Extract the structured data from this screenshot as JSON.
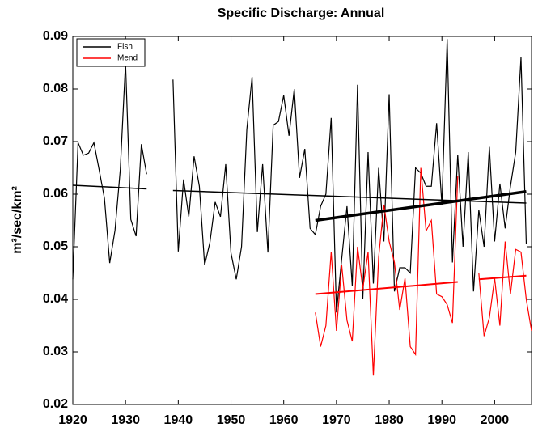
{
  "chart_data": {
    "type": "line",
    "title": "Specific Discharge: Annual",
    "y_label": "m³/sec/km²",
    "x": [
      1920,
      1921,
      1922,
      1923,
      1924,
      1925,
      1926,
      1927,
      1928,
      1929,
      1930,
      1931,
      1932,
      1933,
      1934,
      1935,
      1936,
      1937,
      1938,
      1939,
      1940,
      1941,
      1942,
      1943,
      1944,
      1945,
      1946,
      1947,
      1948,
      1949,
      1950,
      1951,
      1952,
      1953,
      1954,
      1955,
      1956,
      1957,
      1958,
      1959,
      1960,
      1961,
      1962,
      1963,
      1964,
      1965,
      1966,
      1967,
      1968,
      1969,
      1970,
      1971,
      1972,
      1973,
      1974,
      1975,
      1976,
      1977,
      1978,
      1979,
      1980,
      1981,
      1982,
      1983,
      1984,
      1985,
      1986,
      1987,
      1988,
      1989,
      1990,
      1991,
      1992,
      1993,
      1994,
      1995,
      1996,
      1997,
      1998,
      1999,
      2000,
      2001,
      2002,
      2003,
      2004,
      2005,
      2006,
      2007
    ],
    "series": [
      {
        "name": "Fish",
        "color": "#000000",
        "values": [
          0.0438,
          0.0698,
          0.0674,
          0.0678,
          0.0698,
          0.0646,
          0.0592,
          0.0469,
          0.0531,
          0.0646,
          0.085,
          0.0552,
          0.052,
          0.0695,
          0.0638,
          null,
          null,
          null,
          null,
          0.0818,
          0.0491,
          0.0628,
          0.0557,
          0.0672,
          0.0615,
          0.0465,
          0.0508,
          0.0585,
          0.0557,
          0.0657,
          0.0488,
          0.0438,
          0.05,
          0.0723,
          0.0823,
          0.0528,
          0.0657,
          0.0489,
          0.0731,
          0.0738,
          0.0788,
          0.0711,
          0.08,
          0.0631,
          0.0686,
          0.0535,
          0.0523,
          0.0577,
          0.06,
          0.0745,
          0.0375,
          0.0477,
          0.0577,
          0.0425,
          0.0808,
          0.04,
          0.068,
          0.043,
          0.065,
          0.051,
          0.079,
          0.0415,
          0.046,
          0.046,
          0.045,
          0.065,
          0.064,
          0.0615,
          0.0615,
          0.0735,
          0.058,
          0.0895,
          0.047,
          0.0675,
          0.05,
          0.068,
          0.0415,
          0.057,
          0.05,
          0.069,
          0.051,
          0.062,
          0.0535,
          0.0615,
          0.068,
          0.086,
          0.0505,
          null
        ]
      },
      {
        "name": "Mend",
        "color": "#ff0000",
        "values": [
          null,
          null,
          null,
          null,
          null,
          null,
          null,
          null,
          null,
          null,
          null,
          null,
          null,
          null,
          null,
          null,
          null,
          null,
          null,
          null,
          null,
          null,
          null,
          null,
          null,
          null,
          null,
          null,
          null,
          null,
          null,
          null,
          null,
          null,
          null,
          null,
          null,
          null,
          null,
          null,
          null,
          null,
          null,
          null,
          null,
          null,
          0.0375,
          0.031,
          0.035,
          0.049,
          0.034,
          0.0465,
          0.036,
          0.032,
          0.05,
          0.042,
          0.049,
          0.0255,
          0.048,
          0.058,
          0.051,
          0.047,
          0.038,
          0.044,
          0.031,
          0.0295,
          0.065,
          0.053,
          0.055,
          0.041,
          0.0405,
          0.039,
          0.0355,
          0.0635,
          null,
          null,
          null,
          0.045,
          0.033,
          0.0365,
          0.044,
          0.035,
          0.051,
          0.041,
          0.0495,
          0.049,
          0.04,
          0.034
        ]
      }
    ],
    "trend_lines": [
      {
        "color": "#000000",
        "width": 1.5,
        "x": [
          1920,
          1934
        ],
        "y": [
          0.0617,
          0.061
        ]
      },
      {
        "color": "#000000",
        "width": 1.5,
        "x": [
          1939,
          2006
        ],
        "y": [
          0.0607,
          0.0583
        ]
      },
      {
        "color": "#000000",
        "width": 3.5,
        "x": [
          1966,
          2006
        ],
        "y": [
          0.055,
          0.0605
        ]
      },
      {
        "color": "#ff0000",
        "width": 2,
        "x": [
          1966,
          1993
        ],
        "y": [
          0.041,
          0.0433
        ]
      },
      {
        "color": "#ff0000",
        "width": 2,
        "x": [
          1997,
          2006
        ],
        "y": [
          0.0438,
          0.0445
        ]
      }
    ],
    "xlim": [
      1920,
      2007
    ],
    "ylim": [
      0.02,
      0.09
    ],
    "xticks": [
      1920,
      1930,
      1940,
      1950,
      1960,
      1970,
      1980,
      1990,
      2000
    ],
    "yticks": [
      0.02,
      0.03,
      0.04,
      0.05,
      0.06,
      0.07,
      0.08,
      0.09
    ],
    "legend": "upper left"
  }
}
